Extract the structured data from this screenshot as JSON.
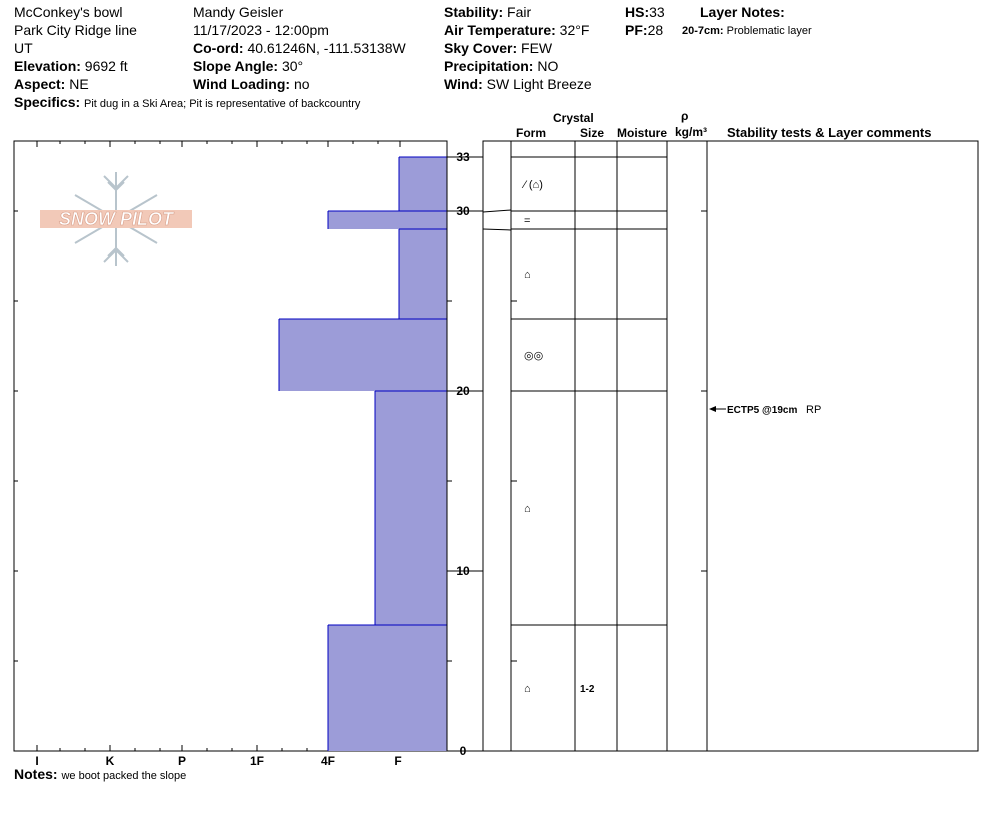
{
  "header": {
    "location": "McConkey's bowl",
    "area": "Park City Ridge line",
    "state": "UT",
    "elevation_label": "Elevation:",
    "elevation_value": "9692 ft",
    "aspect_label": "Aspect:",
    "aspect_value": "NE",
    "specifics_label": "Specifics:",
    "specifics_value": "Pit dug in a Ski Area; Pit is representative of backcountry",
    "observer": "Mandy Geisler",
    "datetime": "11/17/2023 - 12:00pm",
    "coord_label": "Co-ord:",
    "coord_value": "40.61246N, -111.53138W",
    "slope_label": "Slope Angle:",
    "slope_value": "30°",
    "wind_loading_label": "Wind Loading:",
    "wind_loading_value": "no",
    "stability_label": "Stability:",
    "stability_value": "Fair",
    "air_temp_label": "Air Temperature:",
    "air_temp_value": "32°F",
    "sky_label": "Sky Cover:",
    "sky_value": "FEW",
    "precip_label": "Precipitation:",
    "precip_value": "NO",
    "wind_label": "Wind:",
    "wind_value": "SW Light Breeze",
    "hs_label": "HS:",
    "hs_value": "33",
    "pf_label": "PF:",
    "pf_value": "28",
    "layer_notes_label": "Layer Notes:",
    "layer_note_range": "20-7cm:",
    "layer_note_text": "Problematic layer"
  },
  "logo": {
    "text": "SNOW PILOT"
  },
  "notes": {
    "label": "Notes:",
    "value": "we boot packed the slope"
  },
  "columns": {
    "crystal": "Crystal",
    "form": "Form",
    "size": "Size",
    "moisture": "Moisture",
    "rho": "ρ",
    "density_unit": "kg/m³",
    "stability": "Stability tests & Layer comments"
  },
  "colors": {
    "layer_fill": "#9c9cd8",
    "layer_edge": "#0000c0"
  },
  "chart_data": {
    "type": "bar",
    "orientation": "horizontal",
    "x_categories": [
      "I",
      "K",
      "P",
      "1F",
      "4F",
      "F"
    ],
    "y_range": [
      0,
      33
    ],
    "y_ticks": [
      0,
      10,
      20,
      30,
      33
    ],
    "layers": [
      {
        "top": 33,
        "bottom": 30,
        "hardness": "F",
        "form_symbol": "⁄ (⌂)",
        "size": ""
      },
      {
        "top": 30,
        "bottom": 29,
        "hardness": "4F",
        "form_symbol": "=",
        "size": ""
      },
      {
        "top": 29,
        "bottom": 24,
        "hardness": "F",
        "form_symbol": "⌂",
        "size": ""
      },
      {
        "top": 24,
        "bottom": 20,
        "hardness": "1F+",
        "form_symbol": "◎◎",
        "size": ""
      },
      {
        "top": 20,
        "bottom": 7,
        "hardness": "F+",
        "form_symbol": "⌂",
        "size": ""
      },
      {
        "top": 7,
        "bottom": 0,
        "hardness": "4F",
        "form_symbol": "⌂",
        "size": "1-2"
      }
    ],
    "stability_tests": [
      {
        "depth": 19,
        "label": "ECTP5 @19cm",
        "result": "RP"
      }
    ]
  }
}
